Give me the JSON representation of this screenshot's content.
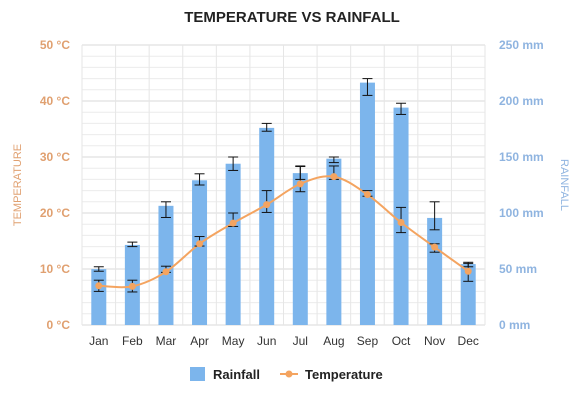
{
  "chart_data": {
    "type": "bar+line",
    "title": "TEMPERATURE VS RAINFALL",
    "categories": [
      "Jan",
      "Feb",
      "Mar",
      "Apr",
      "May",
      "Jun",
      "Jul",
      "Aug",
      "Sep",
      "Oct",
      "Nov",
      "Dec"
    ],
    "series": [
      {
        "name": "Rainfall",
        "kind": "bar",
        "axis": "right",
        "color": "#7cb5ec",
        "values": [
          49.9,
          71.5,
          106.4,
          129.2,
          144.0,
          176.0,
          135.6,
          148.5,
          216.4,
          194.1,
          95.6,
          54.4
        ],
        "error_low": [
          48,
          70,
          96,
          125,
          138,
          173,
          130,
          145,
          205,
          188,
          85,
          52
        ],
        "error_high": [
          52,
          74,
          110,
          135,
          150,
          180,
          142,
          150,
          220,
          198,
          110,
          56
        ]
      },
      {
        "name": "Temperature",
        "kind": "line",
        "axis": "left",
        "color": "#f4a460",
        "values": [
          7.0,
          6.9,
          9.5,
          14.5,
          18.2,
          21.5,
          25.2,
          26.5,
          23.3,
          18.3,
          13.9,
          9.6
        ],
        "error_low": [
          6,
          5.9,
          9.4,
          14.1,
          17.6,
          20.1,
          23.8,
          26,
          23,
          16.5,
          13,
          7.8
        ],
        "error_high": [
          8,
          8,
          10.5,
          15.8,
          20,
          24,
          28.3,
          28.4,
          24,
          21,
          14.5,
          11
        ]
      }
    ],
    "left_axis": {
      "label": "TEMPERATURE",
      "ylim": [
        0,
        50
      ],
      "ticks": [
        "0 °C",
        "10 °C",
        "20 °C",
        "30 °C",
        "40 °C",
        "50 °C"
      ],
      "color": "#e0a070"
    },
    "right_axis": {
      "label": "RAINFALL",
      "ylim": [
        0,
        250
      ],
      "ticks": [
        "0 mm",
        "50 mm",
        "100 mm",
        "150 mm",
        "200 mm",
        "250 mm"
      ],
      "color": "#8fb4e0"
    },
    "grid": true,
    "legend": {
      "placement": "bottom-center",
      "entries": [
        "Rainfall",
        "Temperature"
      ]
    }
  }
}
